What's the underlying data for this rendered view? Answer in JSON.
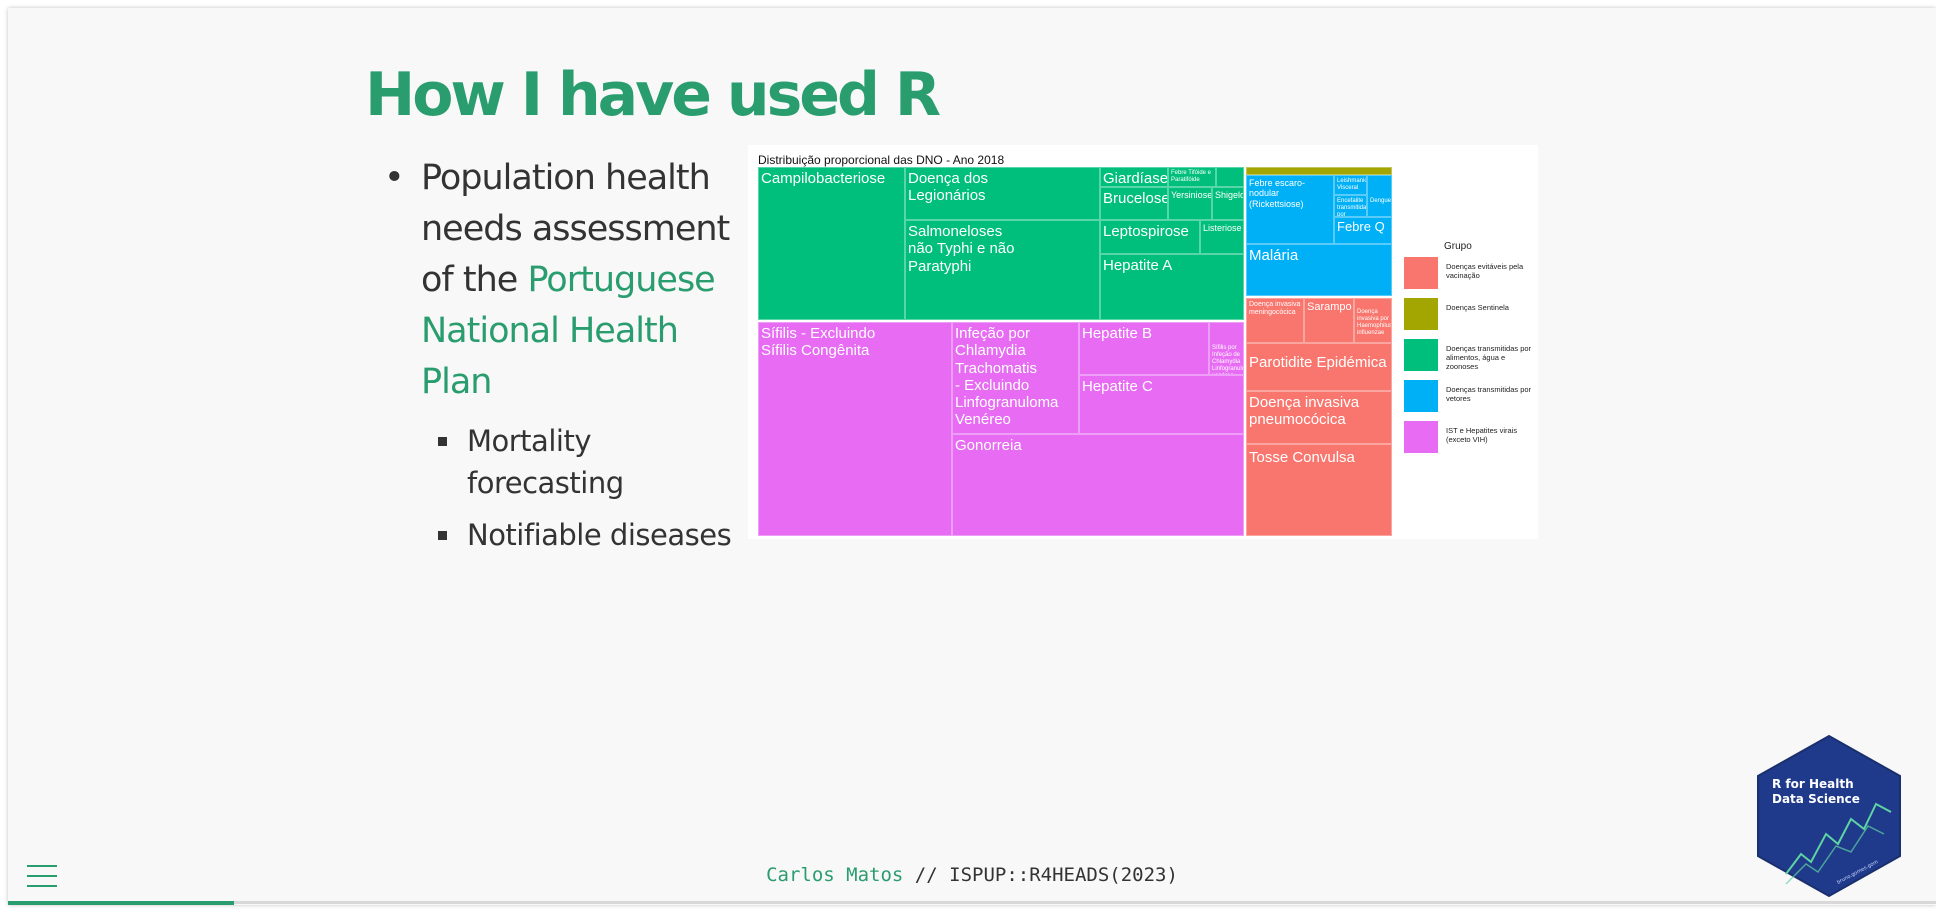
{
  "slide": {
    "title": "How I have used R",
    "bullet_main_1": "Population health needs assessment of the ",
    "bullet_main_highlight": "Portuguese National Health Plan",
    "sub_bullets": [
      "Mortality forecasting",
      "Notifiable diseases"
    ]
  },
  "treemap": {
    "title": "Distribuição proporcional das DNO - Ano 2018",
    "legend_title": "Grupo",
    "legend": [
      {
        "label": "Doenças evitáveis pela vacinação",
        "color": "#f8766d"
      },
      {
        "label": "Doenças Sentinela",
        "color": "#a3a500"
      },
      {
        "label": "Doenças transmitidas por alimentos, água e zoonoses",
        "color": "#00bf7d"
      },
      {
        "label": "Doenças transmitidas por vetores",
        "color": "#00b0f6"
      },
      {
        "label": "IST e Hepatites virais (exceto VIH)",
        "color": "#e76bf3"
      }
    ],
    "labels": {
      "campilo": "Campilobacteriose",
      "legion": "Doença dos\nLegionários",
      "salmon": "Salmoneloses\nnão Typhi e não\nParatyphi",
      "giard": "Giardíase",
      "giard_small": "Febre Tifóide e Paratifóide",
      "bruce": "Brucelose",
      "yersin": "Yersiniose",
      "shig": "Shigelose",
      "lepto": "Leptospirose",
      "lister": "Listeriose",
      "hepa": "Hepatite A",
      "sifilis": "Sífilis - Excluindo\nSífilis Congênita",
      "chlam": "Infeção por\nChlamydia\nTrachomatis\n- Excluindo\nLinfogranuloma\nVenéreo",
      "hepb": "Hepatite B",
      "hepb_small": "Sífilis por Infeção de Chlamydia Linfogranuloma venéreo",
      "hepc": "Hepatite C",
      "gono": "Gonorreia",
      "febre_escaro": "Febre escaro-nodular\n(Rickettsiose)",
      "leish": "Leishmaniose Visceral",
      "dengue": "Dengue",
      "encef": "Encefalite transmitida por carraças",
      "febreq": "Febre Q",
      "malaria": "Malária",
      "meningo": "Doença invasiva\nmeningocócica",
      "sarampo": "Sarampo",
      "small_red": "Doença invasiva por Haemophilus influenzae",
      "parot": "Parotidite Epidémica",
      "pneumo": "Doença invasiva\npneumocócica",
      "tosse": "Tosse Convulsa"
    }
  },
  "footer": {
    "author": "Carlos Matos",
    "separator": " // ",
    "course": "ISPUP::R4HEADS(2023)"
  },
  "logo": {
    "line1": "R for Health",
    "line2": "Data Science",
    "small": "bruno.gomes.gom"
  },
  "colors": {
    "accent": "#2a9d6f",
    "hex_bg": "#1f3a8a"
  },
  "icons": {
    "menu": "hamburger-menu-icon"
  }
}
